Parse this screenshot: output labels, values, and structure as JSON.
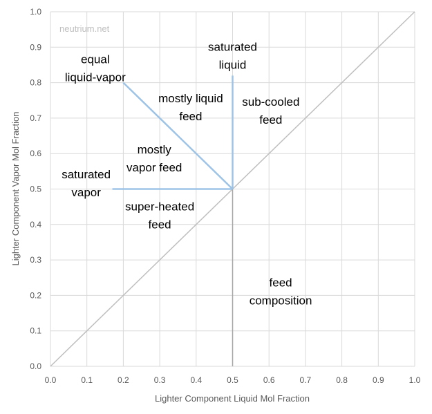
{
  "chart_data": {
    "type": "scatter",
    "title": "",
    "watermark": "neutrium.net",
    "xlabel": "Lighter Component  Liquid Mol Fraction",
    "ylabel": "Lighter Component Vapor Mol Fraction",
    "xlim": [
      0,
      1
    ],
    "ylim": [
      0,
      1
    ],
    "grid": true,
    "x_ticks": [
      "0.0",
      "0.1",
      "0.2",
      "0.3",
      "0.4",
      "0.5",
      "0.6",
      "0.7",
      "0.8",
      "0.9",
      "1.0"
    ],
    "y_ticks": [
      "0.0",
      "0.1",
      "0.2",
      "0.3",
      "0.4",
      "0.5",
      "0.6",
      "0.7",
      "0.8",
      "0.9",
      "1.0"
    ],
    "colors": {
      "grid": "#d9d9d9",
      "diagonal": "#bfbfbf",
      "feed_line": "#a6a6a6",
      "q_lines": "#9dc3e6"
    },
    "series": [
      {
        "id": "diagonal",
        "points": [
          [
            0,
            0
          ],
          [
            1,
            1
          ]
        ]
      },
      {
        "id": "feed-composition",
        "points": [
          [
            0.5,
            0
          ],
          [
            0.5,
            0.5
          ]
        ]
      },
      {
        "id": "saturated-liquid",
        "points": [
          [
            0.5,
            0.5
          ],
          [
            0.5,
            0.82
          ]
        ]
      },
      {
        "id": "equal-liquid-vapor",
        "points": [
          [
            0.5,
            0.5
          ],
          [
            0.2,
            0.8
          ]
        ]
      },
      {
        "id": "saturated-vapor",
        "points": [
          [
            0.5,
            0.5
          ],
          [
            0.17,
            0.5
          ]
        ]
      }
    ],
    "annotations": [
      {
        "id": "saturated-liquid",
        "lines": [
          "saturated",
          "liquid"
        ],
        "x": 0.5,
        "y": 0.89
      },
      {
        "id": "equal-liquid-vapor",
        "lines": [
          "equal",
          "liquid-vapor"
        ],
        "x": 0.123,
        "y": 0.855
      },
      {
        "id": "mostly-liquid-feed",
        "lines": [
          "mostly liquid",
          "feed"
        ],
        "x": 0.385,
        "y": 0.745
      },
      {
        "id": "sub-cooled-feed",
        "lines": [
          "sub-cooled",
          "feed"
        ],
        "x": 0.605,
        "y": 0.735
      },
      {
        "id": "mostly-vapor-feed",
        "lines": [
          "mostly",
          "vapor  feed"
        ],
        "x": 0.285,
        "y": 0.6
      },
      {
        "id": "saturated-vapor",
        "lines": [
          "saturated",
          "vapor"
        ],
        "x": 0.098,
        "y": 0.53
      },
      {
        "id": "super-heated-feed",
        "lines": [
          "super-heated",
          "feed"
        ],
        "x": 0.3,
        "y": 0.44
      },
      {
        "id": "feed-composition",
        "lines": [
          "feed",
          "composition"
        ],
        "x": 0.632,
        "y": 0.225
      }
    ]
  }
}
